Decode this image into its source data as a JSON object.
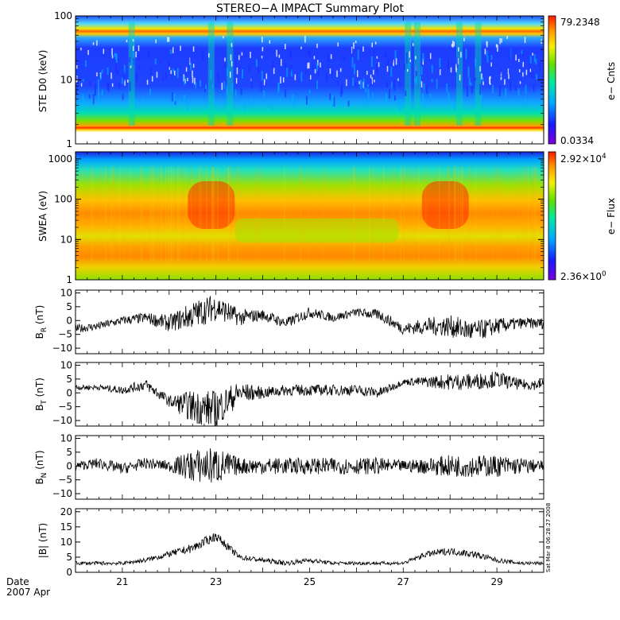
{
  "title": "STEREO−A IMPACT Summary Plot",
  "date_label": "Date",
  "date_value": "2007 Apr",
  "timestamp": "Sat Mar  8 06:28:27 2008",
  "x_ticks": [
    "21",
    "23",
    "25",
    "27",
    "29"
  ],
  "chart_data": [
    {
      "type": "heatmap",
      "name": "ste",
      "ylabel": "STE D0 (keV)",
      "y_scale": "log",
      "ylim": [
        1,
        100
      ],
      "y_ticks": [
        "1",
        "10",
        "100"
      ],
      "colorbar": {
        "label": "e− Cnts",
        "max": "79.2348",
        "min": "0.0334"
      },
      "time_range": [
        "Apr 20 00:00",
        "Apr 30 00:00"
      ],
      "notes": "Bright orange/red horizontal bands near 2 keV and 50-60 keV; vertical enhancements around Apr 21, Apr 23, Apr 27 and Apr 28."
    },
    {
      "type": "heatmap",
      "name": "swea",
      "ylabel": "SWEA (eV)",
      "y_scale": "log",
      "ylim": [
        1,
        1500
      ],
      "y_ticks": [
        "1",
        "10",
        "100",
        "1000"
      ],
      "colorbar": {
        "label": "e− Flux",
        "max_mantissa": "2.92×10",
        "max_exp": "4",
        "min_mantissa": "2.36×10",
        "min_exp": "0"
      },
      "notes": "Peak flux (red) near 30-60 eV around Apr 22.5-23 and Apr 27.5-28."
    },
    {
      "type": "line",
      "name": "br",
      "ylabel_main": "B",
      "ylabel_sub": "R",
      "ylabel_unit": " (nT)",
      "ylim": [
        -12,
        11
      ],
      "y_ticks": [
        "10",
        "5",
        "0",
        "−5",
        "−10"
      ],
      "x": [
        20.0,
        20.5,
        21.0,
        21.5,
        22.0,
        22.5,
        23.0,
        23.5,
        24.0,
        24.5,
        25.0,
        25.5,
        26.0,
        26.5,
        27.0,
        27.5,
        28.0,
        28.5,
        29.0,
        29.5,
        30.0
      ],
      "values": [
        -3,
        -2,
        0,
        1,
        -1,
        2,
        5,
        1,
        2,
        -1,
        3,
        1,
        3,
        2,
        -3,
        -2,
        -2,
        -4,
        -2,
        -1,
        -1
      ],
      "noise": [
        1.5,
        1.5,
        1.5,
        2,
        3,
        5,
        5,
        3,
        2,
        2,
        2,
        1.5,
        1.5,
        2,
        2,
        3,
        4,
        4,
        3,
        2,
        2
      ]
    },
    {
      "type": "line",
      "name": "bt",
      "ylabel_main": "B",
      "ylabel_sub": "T",
      "ylabel_unit": " (nT)",
      "ylim": [
        -12,
        11
      ],
      "y_ticks": [
        "10",
        "5",
        "0",
        "−5",
        "−10"
      ],
      "x": [
        20.0,
        20.5,
        21.0,
        21.5,
        22.0,
        22.5,
        23.0,
        23.5,
        24.0,
        24.5,
        25.0,
        25.5,
        26.0,
        26.5,
        27.0,
        27.5,
        28.0,
        28.5,
        29.0,
        29.5,
        30.0
      ],
      "values": [
        2,
        2,
        1,
        3,
        -3,
        -5,
        -6,
        0,
        0,
        1,
        1,
        1,
        1,
        0,
        4,
        4,
        4,
        4,
        5,
        3,
        3
      ],
      "noise": [
        1,
        1,
        1.5,
        2,
        2,
        6,
        7,
        4,
        2,
        2,
        2,
        2,
        2,
        2,
        1,
        2,
        3,
        3,
        3,
        2,
        2
      ]
    },
    {
      "type": "line",
      "name": "bn",
      "ylabel_main": "B",
      "ylabel_sub": "N",
      "ylabel_unit": " (nT)",
      "ylim": [
        -12,
        11
      ],
      "y_ticks": [
        "10",
        "5",
        "0",
        "−5",
        "−10"
      ],
      "x": [
        20.0,
        20.5,
        21.0,
        21.5,
        22.0,
        22.5,
        23.0,
        23.5,
        24.0,
        24.5,
        25.0,
        25.5,
        26.0,
        26.5,
        27.0,
        27.5,
        28.0,
        28.5,
        29.0,
        29.5,
        30.0
      ],
      "values": [
        0,
        1,
        -1,
        1,
        0,
        0,
        0,
        0,
        0,
        0,
        0,
        0,
        0,
        0,
        0,
        0,
        0,
        0,
        0,
        0,
        0
      ],
      "noise": [
        1.5,
        2,
        2,
        2,
        2,
        6,
        7,
        3,
        3,
        3,
        3,
        3,
        3,
        3,
        2,
        3,
        4,
        4,
        4,
        3,
        2
      ]
    },
    {
      "type": "line",
      "name": "bmag",
      "ylabel": "|B| (nT)",
      "ylim": [
        0,
        21
      ],
      "y_ticks": [
        "20",
        "15",
        "10",
        "5",
        "0"
      ],
      "x": [
        20.0,
        20.5,
        21.0,
        21.5,
        22.0,
        22.5,
        23.0,
        23.5,
        24.0,
        24.5,
        25.0,
        25.5,
        26.0,
        26.5,
        27.0,
        27.5,
        28.0,
        28.5,
        29.0,
        29.5,
        30.0
      ],
      "values": [
        3,
        3,
        3,
        4,
        6,
        8,
        12,
        5,
        4,
        3,
        4,
        3,
        3,
        3,
        3,
        6,
        7,
        6,
        4,
        3,
        3
      ],
      "noise": [
        0.6,
        0.6,
        0.6,
        0.8,
        1,
        1.5,
        1.5,
        1,
        0.8,
        0.8,
        0.8,
        0.6,
        0.6,
        0.6,
        0.6,
        1,
        1.2,
        1.2,
        0.8,
        0.6,
        0.6
      ]
    }
  ]
}
